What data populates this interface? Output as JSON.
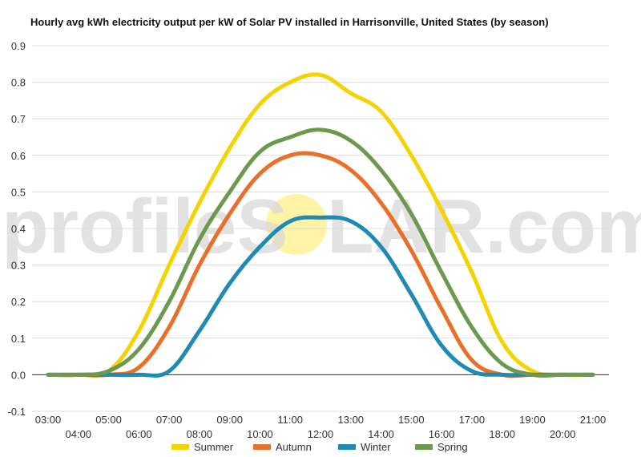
{
  "watermark": {
    "text_left": "profileS",
    "text_right": "LAR.com",
    "sun_color": "#fff3a6"
  },
  "chart_data": {
    "type": "line",
    "title": "Hourly avg kWh electricity output per kW of Solar PV installed in Harrisonville, United States (by season)",
    "xlabel": "",
    "ylabel": "",
    "ylim": [
      -0.1,
      0.9
    ],
    "yticks": [
      "-0.1",
      "0.0",
      "0.1",
      "0.2",
      "0.3",
      "0.4",
      "0.5",
      "0.6",
      "0.7",
      "0.8",
      "0.9"
    ],
    "grid": true,
    "legend_position": "bottom",
    "x": [
      "03:00",
      "04:00",
      "05:00",
      "06:00",
      "07:00",
      "08:00",
      "09:00",
      "10:00",
      "11:00",
      "12:00",
      "13:00",
      "14:00",
      "15:00",
      "16:00",
      "17:00",
      "18:00",
      "19:00",
      "20:00",
      "21:00"
    ],
    "series": [
      {
        "name": "Summer",
        "color": "#f5d300",
        "values": [
          0.0,
          0.0,
          0.01,
          0.12,
          0.3,
          0.47,
          0.62,
          0.74,
          0.8,
          0.82,
          0.77,
          0.72,
          0.6,
          0.45,
          0.28,
          0.09,
          0.01,
          0.0,
          0.0
        ]
      },
      {
        "name": "Autumn",
        "color": "#e8702a",
        "values": [
          0.0,
          0.0,
          0.0,
          0.02,
          0.13,
          0.3,
          0.44,
          0.55,
          0.6,
          0.6,
          0.56,
          0.47,
          0.34,
          0.18,
          0.04,
          0.0,
          0.0,
          0.0,
          0.0
        ]
      },
      {
        "name": "Winter",
        "color": "#1f8ab4",
        "values": [
          0.0,
          0.0,
          0.0,
          0.0,
          0.01,
          0.12,
          0.25,
          0.35,
          0.42,
          0.43,
          0.42,
          0.35,
          0.22,
          0.08,
          0.01,
          0.0,
          0.0,
          0.0,
          0.0
        ]
      },
      {
        "name": "Spring",
        "color": "#6b9a4f",
        "values": [
          0.0,
          0.0,
          0.01,
          0.07,
          0.2,
          0.37,
          0.5,
          0.61,
          0.65,
          0.67,
          0.64,
          0.56,
          0.44,
          0.28,
          0.13,
          0.03,
          0.0,
          0.0,
          0.0
        ]
      }
    ]
  }
}
